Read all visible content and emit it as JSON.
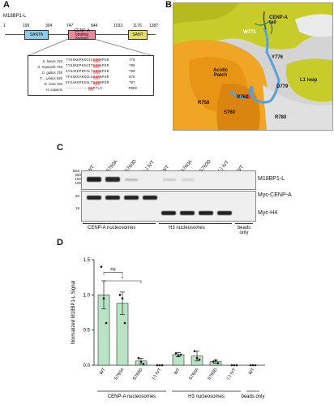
{
  "panel_a": {
    "letter": "A",
    "protein_name": "M18BP1-L",
    "positions": [
      "1",
      "199",
      "304",
      "747",
      "844",
      "1033",
      "1176",
      "1387"
    ],
    "domains": [
      {
        "label": "SANTA",
        "color": "#8ecbe6"
      },
      {
        "label": "CENP-A binding domain",
        "color": "#e8899c"
      },
      {
        "label": "SANT",
        "color": "#e8dc6a"
      }
    ],
    "alignment": [
      {
        "species": "X. laevis",
        "start": "743",
        "seq": "TYSSKEPKSGIS",
        "hl": "SDR",
        "seq2": "KPGR",
        "end": "778"
      },
      {
        "species": "X. tropicalis",
        "start": "764",
        "seq": "TYSSKEPKSGIT",
        "hl": "SDR",
        "seq2": "KPGR",
        "end": "799"
      },
      {
        "species": "G. gallus",
        "start": "755",
        "seq": "SYSAKEPKPALT",
        "hl": "SDR",
        "seq2": "KPGR",
        "end": "790"
      },
      {
        "species": "T. ...ulatus",
        "start": "840",
        "seq": "TFSSKEAKSGLS",
        "hl": "SDR",
        "seq2": "KPGR",
        "end": "875"
      },
      {
        "species": "D. rerio",
        "start": "762",
        "seq": "SFSAKEPKSSLT",
        "hl": "SDR",
        "seq2": "KPGR",
        "end": "797"
      },
      {
        "species": "H. sapiens",
        "start": "",
        "seq": "----------",
        "hl": "RK",
        "seq2": "PTLS",
        "end": "PDDG"
      }
    ]
  },
  "panel_b": {
    "letter": "B",
    "labels": {
      "cenpa_tail": "CENP-A tail",
      "acidic_patch": "Acidic Patch",
      "l1_loop": "L1 loop",
      "w771": "W771",
      "y776": "Y776",
      "d779": "D779",
      "r780": "R780",
      "r758": "R758",
      "r762": "R762",
      "s760": "S760"
    }
  },
  "panel_c": {
    "letter": "C",
    "kda_label": "kDa",
    "mw_markers_top": [
      "250",
      "150",
      "100"
    ],
    "mw_markers_mid": [
      "20"
    ],
    "mw_markers_bottom": [
      "15"
    ],
    "lanes": [
      "WT",
      "S760A",
      "S760D",
      "(-) IVT",
      "WT",
      "S760A",
      "S760D",
      "(-) IVT",
      "WT"
    ],
    "blot_labels": [
      "M18BP1-L",
      "Myc-CENP-A",
      "Myc-H4"
    ],
    "groups": [
      "CENP-A nucleosomes",
      "H3 nucleosomes",
      "beads only"
    ]
  },
  "panel_d": {
    "letter": "D",
    "chart_data": {
      "type": "bar",
      "ylabel": "Normalized M18BP1-L Signal",
      "ylim": [
        0,
        1.5
      ],
      "yticks": [
        "0.0",
        "0.5",
        "1.0",
        "1.5"
      ],
      "categories": [
        "WT",
        "S760A",
        "S760D",
        "(-) IVT",
        "WT",
        "S760A",
        "S760D",
        "(-) IVT",
        "WT"
      ],
      "values": [
        1.0,
        0.88,
        0.06,
        0.0,
        0.15,
        0.13,
        0.05,
        0.0,
        0.0
      ],
      "errors": [
        0.2,
        0.16,
        0.04,
        0.0,
        0.03,
        0.07,
        0.02,
        0.0,
        0.0
      ],
      "points": [
        [
          1.4,
          0.95,
          0.6
        ],
        [
          1.0,
          0.95,
          0.6
        ],
        [
          0.1,
          0.05,
          0.02
        ],
        [
          0,
          0,
          0
        ],
        [
          0.17,
          0.13,
          0.15
        ],
        [
          0.2,
          0.1,
          0.08
        ],
        [
          0.05,
          0.07,
          0.03
        ],
        [
          0,
          0,
          0
        ],
        [
          0,
          0,
          0
        ]
      ],
      "groups": [
        "CENP-A nucleosomes",
        "H3 nucleosomes",
        "beads only"
      ],
      "annotations": [
        "ns",
        "*"
      ],
      "bar_color": "#b9e3c4"
    }
  }
}
